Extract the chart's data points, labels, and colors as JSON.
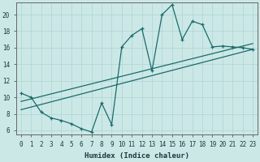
{
  "xlabel": "Humidex (Indice chaleur)",
  "xlim": [
    -0.5,
    23.5
  ],
  "ylim": [
    5.5,
    21.5
  ],
  "xticks": [
    0,
    1,
    2,
    3,
    4,
    5,
    6,
    7,
    8,
    9,
    10,
    11,
    12,
    13,
    14,
    15,
    16,
    17,
    18,
    19,
    20,
    21,
    22,
    23
  ],
  "yticks": [
    6,
    8,
    10,
    12,
    14,
    16,
    18,
    20
  ],
  "bg_color": "#cce8e6",
  "grid_color": "#b0d8d6",
  "line_color": "#1a6b6b",
  "line1_x": [
    0,
    1,
    2,
    3,
    4,
    5,
    6,
    7,
    8,
    9,
    10,
    11,
    12,
    13,
    14,
    15,
    16,
    17,
    18,
    19,
    20,
    21,
    22,
    23
  ],
  "line1_y": [
    10.5,
    10.0,
    8.2,
    7.5,
    7.2,
    6.8,
    6.2,
    5.8,
    9.3,
    6.7,
    16.1,
    17.5,
    18.3,
    13.2,
    20.0,
    21.2,
    17.0,
    19.2,
    18.8,
    16.1,
    16.2,
    16.1,
    16.0,
    15.8
  ],
  "line2_x": [
    0,
    23
  ],
  "line2_y": [
    9.5,
    16.5
  ],
  "line3_x": [
    0,
    23
  ],
  "line3_y": [
    8.5,
    15.8
  ]
}
